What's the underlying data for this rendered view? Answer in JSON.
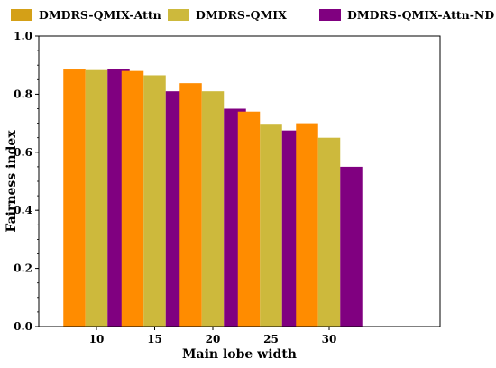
{
  "chart_data": {
    "type": "bar",
    "title": "",
    "xlabel": "Main lobe width",
    "ylabel": "Fairness index",
    "categories": [
      "10",
      "15",
      "20",
      "25",
      "30"
    ],
    "ylim": [
      0.0,
      1.0
    ],
    "yticks": [
      "0.0",
      "0.2",
      "0.4",
      "0.6",
      "0.8",
      "1.0"
    ],
    "grid": false,
    "legend_position": "top",
    "series": [
      {
        "name": "DMDRS-QMIX-Attn",
        "color": "#ff8c00",
        "legend_color": "#d4a017",
        "values": [
          0.885,
          0.88,
          0.838,
          0.74,
          0.7
        ]
      },
      {
        "name": "DMDRS-QMIX",
        "color": "#cdb93c",
        "legend_color": "#cdb93c",
        "values": [
          0.883,
          0.865,
          0.81,
          0.695,
          0.65
        ]
      },
      {
        "name": "DMDRS-QMIX-Attn-ND",
        "color": "#800080",
        "legend_color": "#800080",
        "values": [
          0.888,
          0.81,
          0.75,
          0.675,
          0.55
        ]
      }
    ]
  }
}
